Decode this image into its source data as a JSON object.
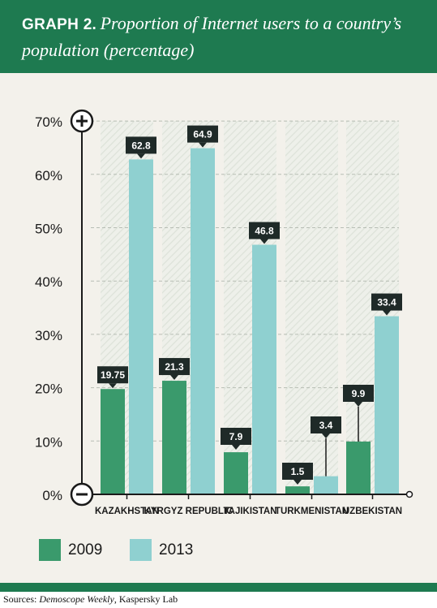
{
  "header": {
    "label": "GRAPH 2.",
    "title": "Proportion of Internet users to a country’s population (percentage)"
  },
  "colors": {
    "header": "#1e7a50",
    "s2009": "#3a9a6c",
    "s2013": "#8fd0d0",
    "panel": "#f3f1eb"
  },
  "chart_data": {
    "type": "bar",
    "categories": [
      "KAZAKHSTAN",
      "KYRGYZ REPUBLIC",
      "TAJIKISTAN",
      "TURKMENISTAN",
      "UZBEKISTAN"
    ],
    "series": [
      {
        "name": "2009",
        "values": [
          19.75,
          21.3,
          7.9,
          1.5,
          9.9
        ],
        "labels": [
          "19.75",
          "21.3",
          "7.9",
          "1.5",
          "9.9"
        ]
      },
      {
        "name": "2013",
        "values": [
          62.8,
          64.9,
          46.8,
          3.4,
          33.4
        ],
        "labels": [
          "62.8",
          "64.9",
          "46.8",
          "3.4",
          "33.4"
        ]
      }
    ],
    "yticks": [
      "0%",
      "10%",
      "20%",
      "30%",
      "40%",
      "50%",
      "60%",
      "70%"
    ],
    "ylim": [
      0,
      70
    ],
    "grid": true,
    "legend": "bottom"
  },
  "sources": {
    "prefix": "Sources: ",
    "italic": "Demoscope Weekly",
    "suffix": ", Kaspersky Lab"
  }
}
